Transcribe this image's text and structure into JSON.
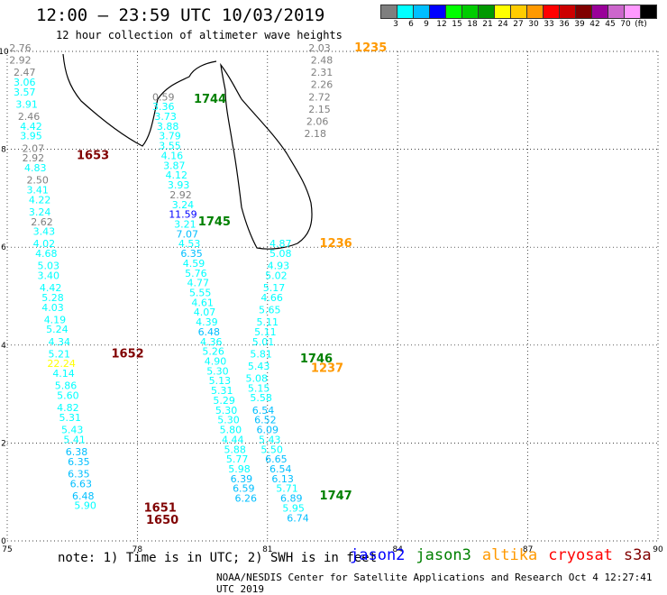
{
  "header": {
    "title": "12:00 – 23:59 UTC 10/03/2019",
    "subtitle": "12 hour collection of altimeter wave heights"
  },
  "color_scale": {
    "colors": [
      "#7f7f7f",
      "#00ffff",
      "#00bfff",
      "#0000ff",
      "#00ff00",
      "#00cc00",
      "#009900",
      "#ffff00",
      "#ffcc00",
      "#ff9900",
      "#ff0000",
      "#cc0000",
      "#800000",
      "#990099",
      "#cc66cc",
      "#ff99ff",
      "#000000"
    ],
    "labels": [
      "3",
      "6",
      "9",
      "12",
      "15",
      "18",
      "21",
      "24",
      "27",
      "30",
      "33",
      "36",
      "39",
      "42",
      "45",
      "70",
      "(ft)"
    ]
  },
  "note": "note:  1) Time is in UTC;  2) SWH is in feet",
  "footer": "NOAA/NESDIS Center for Satellite Applications and Research   Oct  4 12:27:41 UTC 2019",
  "satellites": [
    {
      "name": "jason2",
      "color": "#0000ff"
    },
    {
      "name": "jason3",
      "color": "#008000"
    },
    {
      "name": "altika",
      "color": "#ff9900"
    },
    {
      "name": "cryosat",
      "color": "#ff0000"
    },
    {
      "name": "s3a",
      "color": "#800000"
    }
  ],
  "chart_data": {
    "type": "scatter",
    "xlim": [
      75,
      90
    ],
    "ylim": [
      0,
      10
    ],
    "x_ticks": [
      75,
      78,
      81,
      84,
      87,
      90
    ],
    "y_ticks": [
      0,
      2,
      4,
      6,
      8,
      10
    ],
    "grid": true,
    "color_thresholds": [
      3,
      6,
      9,
      12,
      15,
      18,
      21,
      24,
      27,
      30,
      33,
      36,
      39,
      42,
      45,
      70
    ],
    "tracks": [
      {
        "time": "1653",
        "satellite": "s3a",
        "label_pos": [
          76.6,
          7.8
        ],
        "points": [
          [
            75.3,
            10.0,
            "2.76"
          ],
          [
            75.3,
            9.75,
            "2.92"
          ],
          [
            75.4,
            9.5,
            "2.47"
          ],
          [
            75.4,
            9.3,
            "3.06"
          ],
          [
            75.4,
            9.1,
            "3.57"
          ],
          [
            75.45,
            8.85,
            "3.91"
          ],
          [
            75.5,
            8.6,
            "2.46"
          ],
          [
            75.55,
            8.4,
            "4.42"
          ],
          [
            75.55,
            8.2,
            "3.95"
          ],
          [
            75.6,
            7.95,
            "2.07"
          ],
          [
            75.6,
            7.75,
            "2.92"
          ],
          [
            75.65,
            7.55,
            "4.83"
          ],
          [
            75.7,
            7.3,
            "2.50"
          ],
          [
            75.7,
            7.1,
            "3.41"
          ],
          [
            75.75,
            6.9,
            "4.22"
          ],
          [
            75.75,
            6.65,
            "3.24"
          ],
          [
            75.8,
            6.45,
            "2.62"
          ],
          [
            75.85,
            6.25,
            "3.43"
          ],
          [
            75.85,
            6.0,
            "4.02"
          ],
          [
            75.9,
            5.8,
            "4.68"
          ],
          [
            75.95,
            5.55,
            "5.03"
          ],
          [
            75.95,
            5.35,
            "3.40"
          ],
          [
            76.0,
            5.1,
            "4.42"
          ],
          [
            76.05,
            4.9,
            "5.28"
          ],
          [
            76.05,
            4.7,
            "4.03"
          ],
          [
            76.1,
            4.45,
            "4.19"
          ],
          [
            76.15,
            4.25,
            "5.24"
          ],
          [
            76.2,
            4.0,
            "4.34"
          ],
          [
            76.2,
            3.75,
            "5.21"
          ],
          [
            76.25,
            3.55,
            "22.24"
          ],
          [
            76.3,
            3.35,
            "4.14"
          ],
          [
            76.35,
            3.1,
            "5.86"
          ],
          [
            76.4,
            2.9,
            "5.60"
          ],
          [
            76.4,
            2.65,
            "4.82"
          ],
          [
            76.45,
            2.45,
            "5.31"
          ],
          [
            76.5,
            2.2,
            "5.43"
          ],
          [
            76.55,
            2.0,
            "5.41"
          ],
          [
            76.6,
            1.75,
            "6.38"
          ],
          [
            76.65,
            1.55,
            "6.35"
          ],
          [
            76.65,
            1.3,
            "6.35"
          ],
          [
            76.7,
            1.1,
            "6.63"
          ],
          [
            76.75,
            0.85,
            "6.48"
          ],
          [
            76.8,
            0.65,
            "5.90"
          ]
        ]
      },
      {
        "time": "1744",
        "satellite": "jason3",
        "label_pos": [
          79.3,
          8.95
        ],
        "points": [
          [
            78.6,
            9.0,
            "0.59"
          ],
          [
            78.6,
            8.8,
            "3.36"
          ],
          [
            78.65,
            8.6,
            "3.73"
          ],
          [
            78.7,
            8.4,
            "3.88"
          ],
          [
            78.75,
            8.2,
            "3.79"
          ],
          [
            78.75,
            8.0,
            "3.55"
          ],
          [
            78.8,
            7.8,
            "4.16"
          ],
          [
            78.85,
            7.6,
            "3.87"
          ],
          [
            78.9,
            7.4,
            "4.12"
          ],
          [
            78.95,
            7.2,
            "3.93"
          ],
          [
            79.0,
            7.0,
            "2.92"
          ],
          [
            79.05,
            6.8,
            "3.24"
          ],
          [
            79.05,
            6.6,
            "11.59"
          ],
          [
            79.1,
            6.4,
            "3.21"
          ],
          [
            79.15,
            6.2,
            "7.07"
          ],
          [
            79.2,
            6.0,
            "4.53"
          ],
          [
            79.25,
            5.8,
            "6.35"
          ],
          [
            79.3,
            5.6,
            "4.59"
          ],
          [
            79.35,
            5.4,
            "5.76"
          ],
          [
            79.4,
            5.2,
            "4.77"
          ],
          [
            79.45,
            5.0,
            "5.55"
          ],
          [
            79.5,
            4.8,
            "4.61"
          ],
          [
            79.55,
            4.6,
            "4.07"
          ],
          [
            79.6,
            4.4,
            "4.39"
          ],
          [
            79.65,
            4.2,
            "6.48"
          ],
          [
            79.7,
            4.0,
            "4.36"
          ],
          [
            79.75,
            3.8,
            "5.26"
          ],
          [
            79.8,
            3.6,
            "4.90"
          ],
          [
            79.85,
            3.4,
            "5.30"
          ],
          [
            79.9,
            3.2,
            "5.13"
          ],
          [
            79.95,
            3.0,
            "5.31"
          ],
          [
            80.0,
            2.8,
            "5.29"
          ],
          [
            80.05,
            2.6,
            "5.30"
          ],
          [
            80.1,
            2.4,
            "5.30"
          ],
          [
            80.15,
            2.2,
            "5.80"
          ],
          [
            80.2,
            2.0,
            "4.44"
          ],
          [
            80.25,
            1.8,
            "5.88"
          ],
          [
            80.3,
            1.6,
            "5.77"
          ],
          [
            80.35,
            1.4,
            "5.98"
          ],
          [
            80.4,
            1.2,
            "6.39"
          ],
          [
            80.45,
            1.0,
            "6.59"
          ],
          [
            80.5,
            0.8,
            "6.26"
          ]
        ]
      },
      {
        "time": "1235",
        "satellite": "altika",
        "label_pos": [
          83.0,
          10.0
        ],
        "points": [
          [
            82.2,
            10.0,
            "2.03"
          ],
          [
            82.25,
            9.75,
            "2.48"
          ],
          [
            82.25,
            9.5,
            "2.31"
          ],
          [
            82.25,
            9.25,
            "2.26"
          ],
          [
            82.2,
            9.0,
            "2.72"
          ],
          [
            82.2,
            8.75,
            "2.15"
          ],
          [
            82.15,
            8.5,
            "2.06"
          ],
          [
            82.1,
            8.25,
            "2.18"
          ]
        ]
      },
      {
        "time": "1236",
        "satellite": "altika",
        "label_pos": [
          82.2,
          6.0
        ],
        "points": [
          [
            81.3,
            6.0,
            "4.87"
          ],
          [
            81.3,
            5.8,
            "5.08"
          ],
          [
            81.25,
            5.55,
            "4.93"
          ],
          [
            81.2,
            5.35,
            "5.02"
          ],
          [
            81.15,
            5.1,
            "5.17"
          ],
          [
            81.1,
            4.9,
            "4.66"
          ],
          [
            81.05,
            4.65,
            "5.65"
          ],
          [
            81.0,
            4.4,
            "5.11"
          ],
          [
            80.95,
            4.2,
            "5.11"
          ],
          [
            80.9,
            4.0,
            "5.01"
          ],
          [
            80.85,
            3.75,
            "5.81"
          ],
          [
            80.8,
            3.5,
            "5.43"
          ],
          [
            80.75,
            3.25,
            "5.08"
          ]
        ]
      },
      {
        "time": "1237",
        "satellite": "altika",
        "label_pos": [
          82.0,
          3.45
        ],
        "points": [
          [
            80.8,
            3.05,
            "5.15"
          ],
          [
            80.85,
            2.85,
            "5.58"
          ],
          [
            80.9,
            2.6,
            "6.54"
          ],
          [
            80.95,
            2.4,
            "6.52"
          ],
          [
            81.0,
            2.2,
            "6.09"
          ],
          [
            81.05,
            2.0,
            "5.43"
          ]
        ]
      },
      {
        "time": "1746",
        "satellite": "jason3",
        "label_pos": [
          81.75,
          3.65
        ],
        "points": []
      },
      {
        "time": "1745",
        "satellite": "jason3",
        "label_pos": [
          79.4,
          6.45
        ],
        "points": []
      },
      {
        "time": "1747",
        "satellite": "jason3",
        "label_pos": [
          82.2,
          0.85
        ],
        "points": [
          [
            81.1,
            1.8,
            "5.50"
          ],
          [
            81.2,
            1.6,
            "6.65"
          ],
          [
            81.3,
            1.4,
            "6.54"
          ],
          [
            81.35,
            1.2,
            "6.13"
          ],
          [
            81.45,
            1.0,
            "5.71"
          ],
          [
            81.55,
            0.8,
            "6.89"
          ],
          [
            81.6,
            0.6,
            "5.95"
          ],
          [
            81.7,
            0.4,
            "6.74"
          ]
        ]
      },
      {
        "time": "1651",
        "satellite": "s3a",
        "label_pos": [
          78.15,
          0.6
        ],
        "points": []
      },
      {
        "time": "1650",
        "satellite": "s3a",
        "label_pos": [
          78.2,
          0.35
        ],
        "points": []
      },
      {
        "time": "1652",
        "satellite": "s3a",
        "label_pos": [
          77.4,
          3.75
        ],
        "points": []
      }
    ]
  }
}
